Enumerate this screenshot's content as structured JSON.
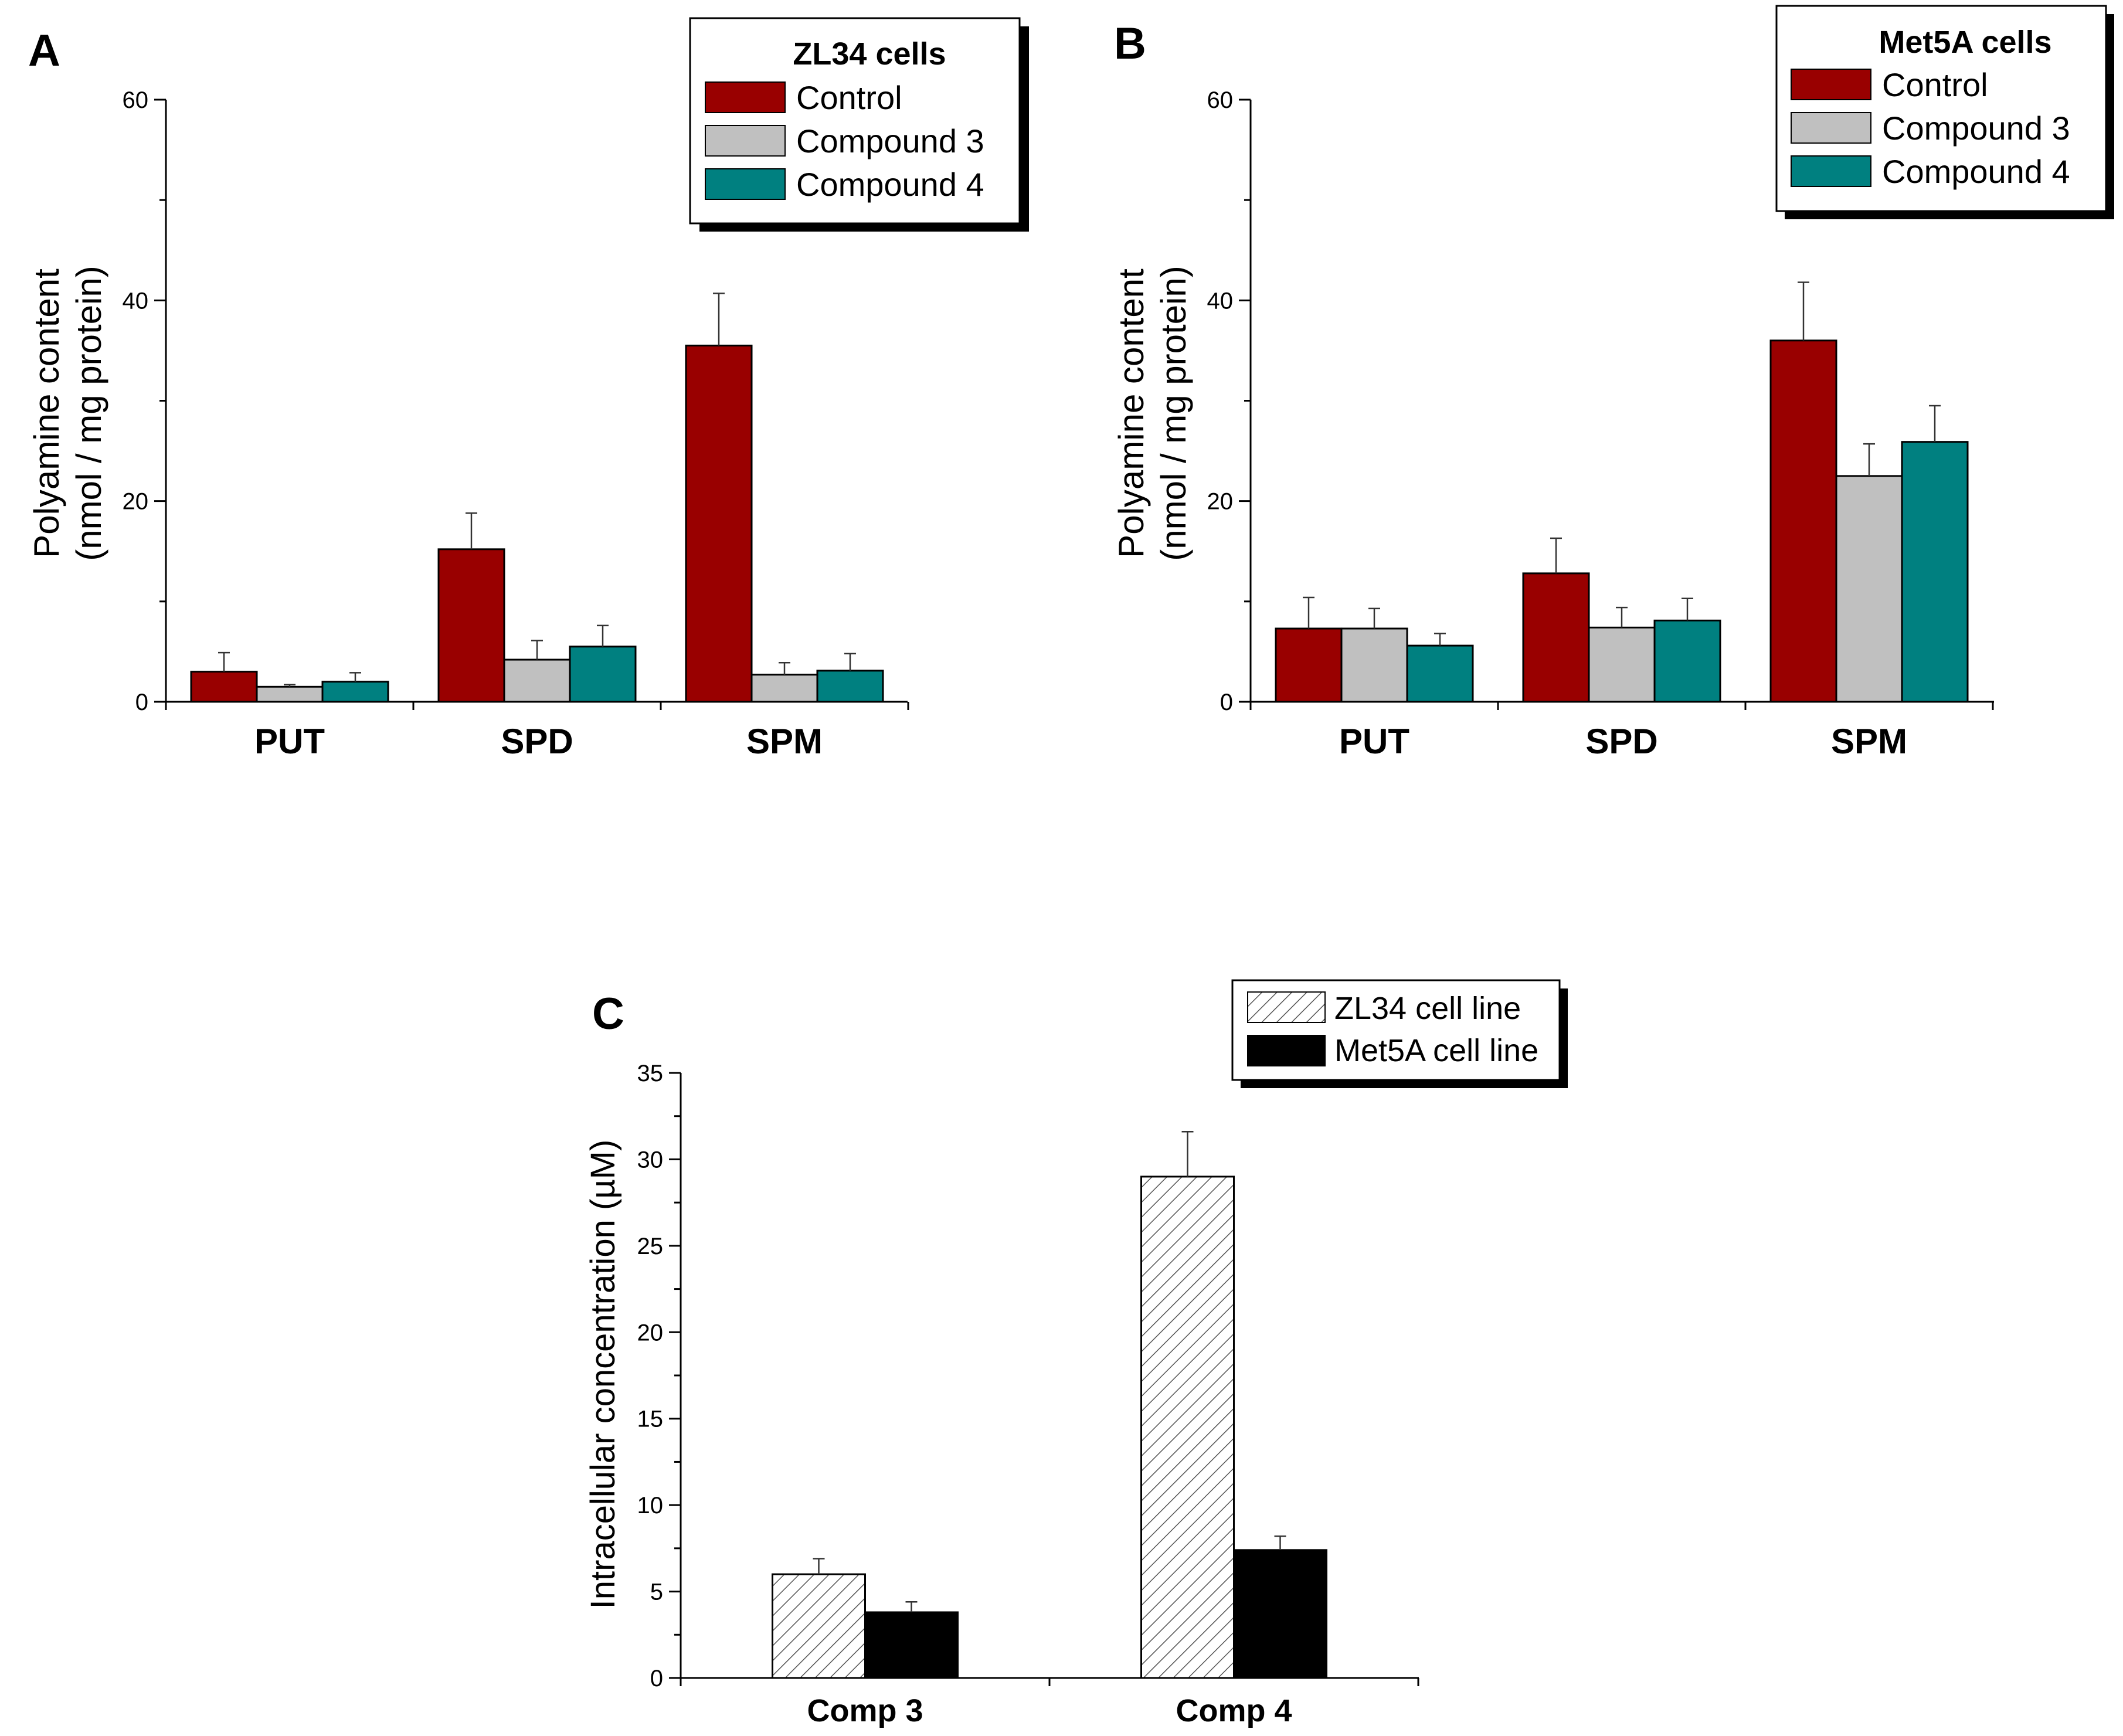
{
  "colors": {
    "control": "#990000",
    "compound3": "#c0c0c0",
    "compound4": "#008080",
    "met5a": "#000000"
  },
  "chart_data": [
    {
      "panel": "A",
      "type": "bar",
      "title": "",
      "legend_title": "ZL34 cells",
      "legend_position": "top-right",
      "xlabel": "",
      "ylabel_line1": "Polyamine content",
      "ylabel_line2": "(nmol / mg protein)",
      "ylim": [
        0,
        60
      ],
      "yticks": [
        0,
        20,
        40,
        60
      ],
      "categories": [
        "PUT",
        "SPD",
        "SPM"
      ],
      "series": [
        {
          "name": "Control",
          "color": "#990000",
          "values": [
            3.0,
            15.2,
            35.5
          ],
          "errors": [
            1.9,
            3.6,
            5.2
          ]
        },
        {
          "name": "Compound 3",
          "color": "#c0c0c0",
          "values": [
            1.5,
            4.2,
            2.7
          ],
          "errors": [
            0.2,
            1.9,
            1.2
          ]
        },
        {
          "name": "Compound 4",
          "color": "#008080",
          "values": [
            2.0,
            5.5,
            3.1
          ],
          "errors": [
            0.9,
            2.1,
            1.7
          ]
        }
      ]
    },
    {
      "panel": "B",
      "type": "bar",
      "title": "",
      "legend_title": "Met5A cells",
      "legend_position": "top-right",
      "xlabel": "",
      "ylabel_line1": "Polyamine content",
      "ylabel_line2": "(nmol / mg protein)",
      "ylim": [
        0,
        60
      ],
      "yticks": [
        0,
        20,
        40,
        60
      ],
      "categories": [
        "PUT",
        "SPD",
        "SPM"
      ],
      "series": [
        {
          "name": "Control",
          "color": "#990000",
          "values": [
            7.3,
            12.8,
            36.0
          ],
          "errors": [
            3.1,
            3.5,
            5.8
          ]
        },
        {
          "name": "Compound 3",
          "color": "#c0c0c0",
          "values": [
            7.3,
            7.4,
            22.5
          ],
          "errors": [
            2.0,
            2.0,
            3.2
          ]
        },
        {
          "name": "Compound 4",
          "color": "#008080",
          "values": [
            5.6,
            8.1,
            25.9
          ],
          "errors": [
            1.2,
            2.2,
            3.6
          ]
        }
      ]
    },
    {
      "panel": "C",
      "type": "bar",
      "title": "",
      "legend_title": "",
      "legend_position": "top-right",
      "xlabel": "",
      "ylabel": "Intracellular concentration (µM)",
      "ylim": [
        0,
        35
      ],
      "yticks": [
        0,
        5,
        10,
        15,
        20,
        25,
        30,
        35
      ],
      "categories": [
        "Comp 3",
        "Comp 4"
      ],
      "series": [
        {
          "name": "ZL34 cell line",
          "pattern": "hatched",
          "values": [
            6.0,
            29.0
          ],
          "errors": [
            0.9,
            2.6
          ]
        },
        {
          "name": "Met5A cell line",
          "color": "#000000",
          "values": [
            3.8,
            7.4
          ],
          "errors": [
            0.6,
            0.8
          ]
        }
      ]
    }
  ]
}
